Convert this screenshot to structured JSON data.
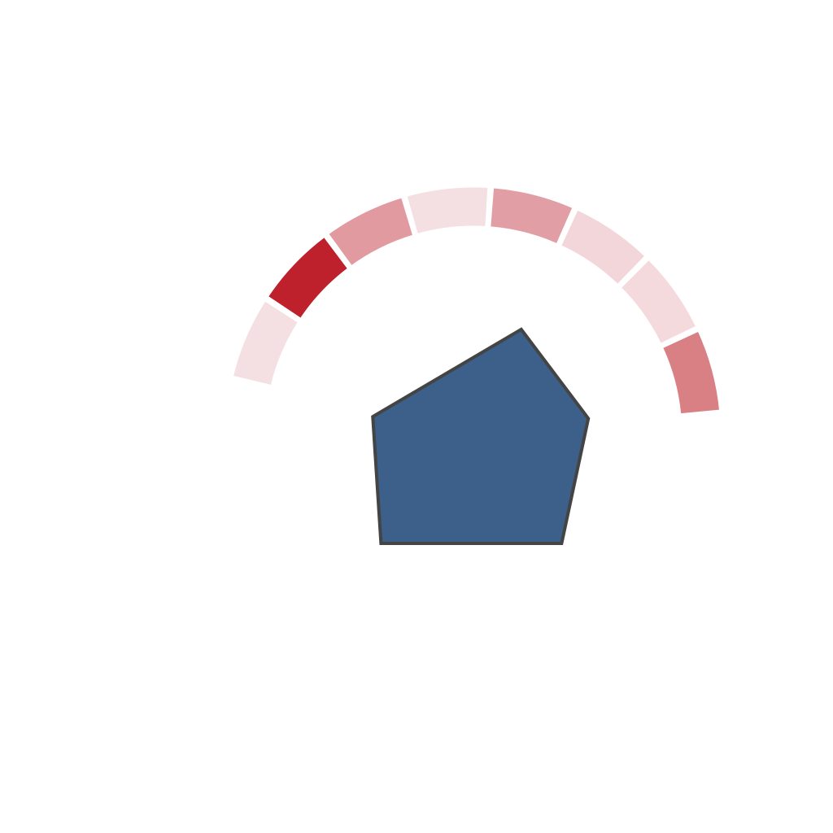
{
  "chart_data": {
    "type": "radial",
    "description_free": true,
    "arc": {
      "segments": [
        {
          "value": 1,
          "color": "#f4dfe2"
        },
        {
          "value": 1,
          "color": "#be202c"
        },
        {
          "value": 1,
          "color": "#e19aa0"
        },
        {
          "value": 1,
          "color": "#f4dfe2"
        },
        {
          "value": 1,
          "color": "#e19ea4"
        },
        {
          "value": 1,
          "color": "#f2d6d9"
        },
        {
          "value": 1,
          "color": "#f4dadd"
        },
        {
          "value": 1,
          "color": "#d98085"
        }
      ]
    },
    "polygon": {
      "values": [
        0.95,
        0.7,
        0.9,
        0.75,
        0.92
      ],
      "fill": "#3c6089",
      "stroke": "#444444"
    }
  }
}
